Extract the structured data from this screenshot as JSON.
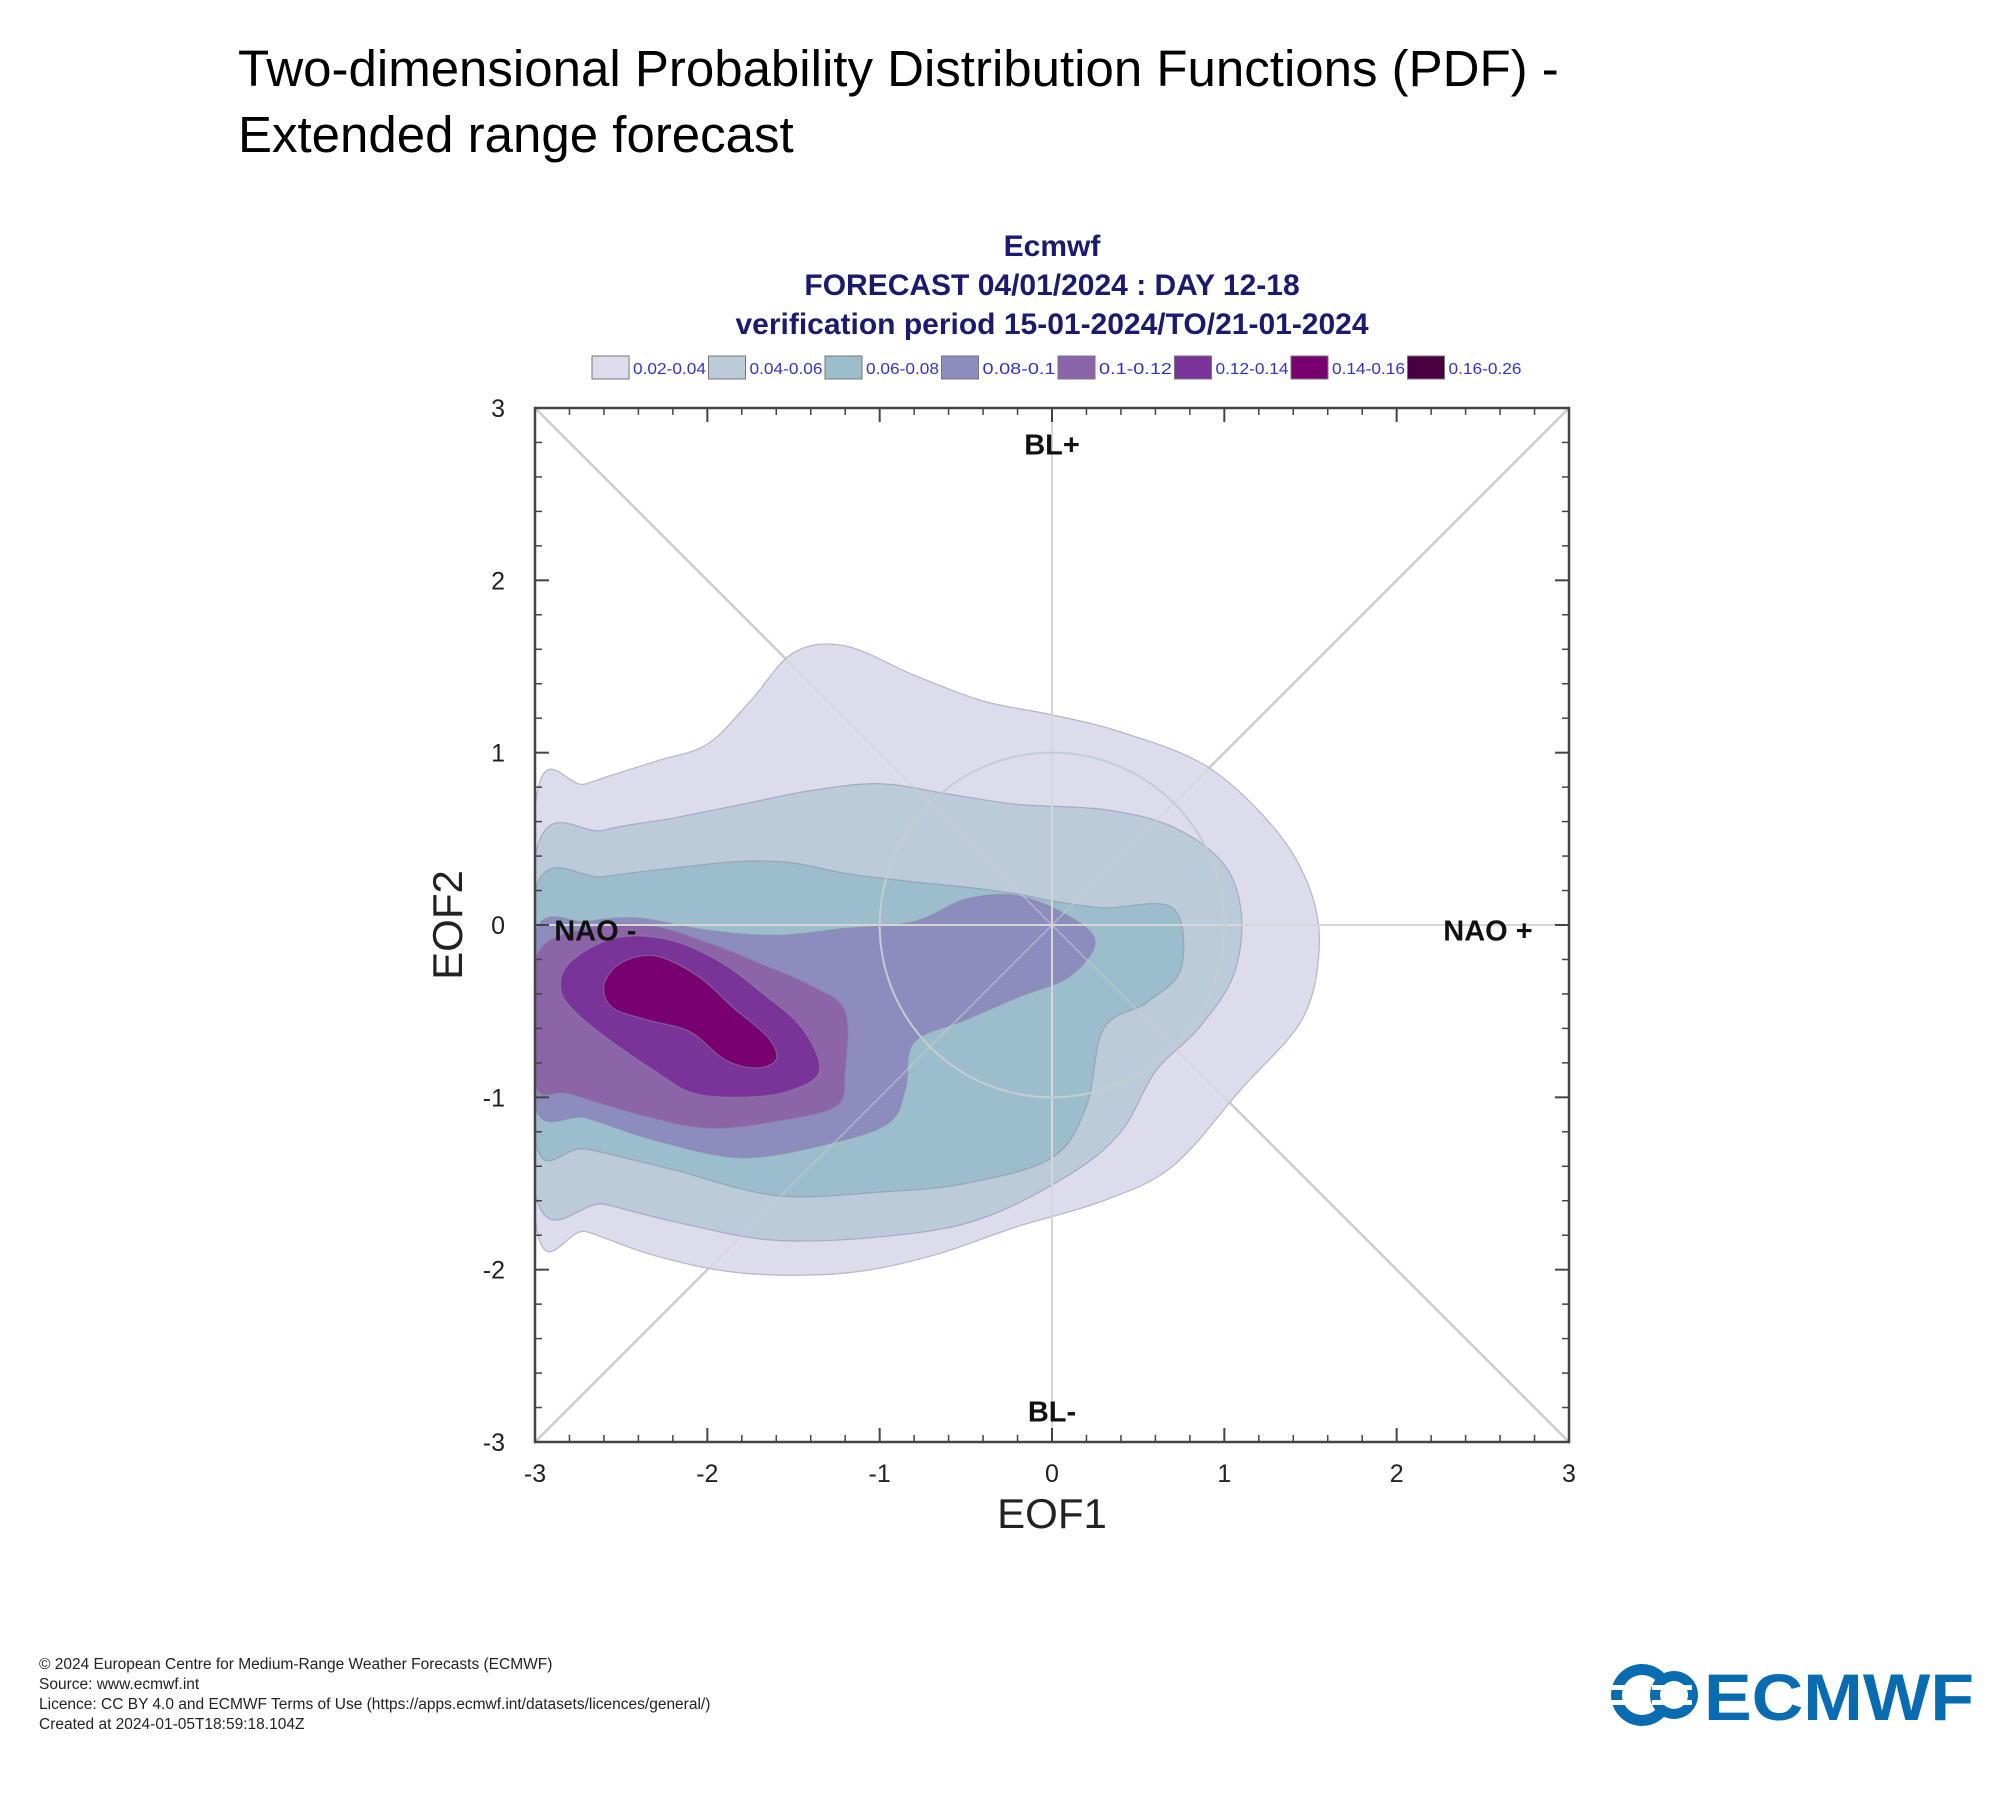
{
  "page": {
    "title_line1": "Two-dimensional Probability Distribution Functions (PDF) -",
    "title_line2": "Extended range forecast"
  },
  "chart_data": {
    "type": "contour",
    "title_lines": [
      "Ecmwf",
      "FORECAST 04/01/2024 : DAY 12-18",
      "verification period 15-01-2024/TO/21-01-2024"
    ],
    "xlabel": "EOF1",
    "ylabel": "EOF2",
    "xlim": [
      -3,
      3
    ],
    "ylim": [
      -3,
      3
    ],
    "xticks": [
      "-3",
      "-2",
      "-1",
      "0",
      "1",
      "2",
      "3"
    ],
    "yticks": [
      "-3",
      "-2",
      "-1",
      "0",
      "1",
      "2",
      "3"
    ],
    "regime_labels": [
      {
        "text": "BL+",
        "x": 0,
        "y": 2.73
      },
      {
        "text": "BL-",
        "x": 0,
        "y": -2.88
      },
      {
        "text": "NAO -",
        "x": -2.65,
        "y": -0.09
      },
      {
        "text": "NAO +",
        "x": 2.53,
        "y": -0.09
      }
    ],
    "legend": [
      {
        "label": "0.02-0.04",
        "color": "#dcdcec"
      },
      {
        "label": "0.04-0.06",
        "color": "#bccbda"
      },
      {
        "label": "0.06-0.08",
        "color": "#9bbdcc"
      },
      {
        "label": "0.08-0.1",
        "color": "#8c8cbe"
      },
      {
        "label": "0.1-0.12",
        "color": "#8c64a8"
      },
      {
        "label": "0.12-0.14",
        "color": "#7a3398"
      },
      {
        "label": "0.14-0.16",
        "color": "#780070"
      },
      {
        "label": "0.16-0.26",
        "color": "#4a0040"
      }
    ],
    "contours": [
      {
        "level": "0.02-0.04",
        "color": "#dcdcec",
        "points": [
          [
            -3,
            0.69
          ],
          [
            -2.7,
            0.82
          ],
          [
            -2.3,
            0.95
          ],
          [
            -2,
            1.05
          ],
          [
            -1.75,
            1.3
          ],
          [
            -1.5,
            1.58
          ],
          [
            -1.2,
            1.62
          ],
          [
            -0.8,
            1.45
          ],
          [
            -0.4,
            1.3
          ],
          [
            0,
            1.22
          ],
          [
            0.4,
            1.12
          ],
          [
            0.9,
            0.92
          ],
          [
            1.3,
            0.55
          ],
          [
            1.5,
            0.2
          ],
          [
            1.55,
            -0.15
          ],
          [
            1.45,
            -0.55
          ],
          [
            1.1,
            -0.95
          ],
          [
            0.7,
            -1.4
          ],
          [
            0.3,
            -1.6
          ],
          [
            -0.2,
            -1.75
          ],
          [
            -0.7,
            -1.92
          ],
          [
            -1.2,
            -2.02
          ],
          [
            -1.8,
            -2.02
          ],
          [
            -2.3,
            -1.92
          ],
          [
            -2.7,
            -1.78
          ],
          [
            -3,
            -1.7
          ]
        ]
      },
      {
        "level": "0.04-0.06",
        "color": "#bccbda",
        "points": [
          [
            -3,
            0.4
          ],
          [
            -2.6,
            0.55
          ],
          [
            -2.2,
            0.62
          ],
          [
            -1.8,
            0.7
          ],
          [
            -1.4,
            0.78
          ],
          [
            -1,
            0.82
          ],
          [
            -0.6,
            0.76
          ],
          [
            -0.2,
            0.7
          ],
          [
            0.3,
            0.67
          ],
          [
            0.7,
            0.57
          ],
          [
            1,
            0.35
          ],
          [
            1.1,
            0.05
          ],
          [
            1.05,
            -0.3
          ],
          [
            0.85,
            -0.6
          ],
          [
            0.6,
            -0.85
          ],
          [
            0.4,
            -1.2
          ],
          [
            0.1,
            -1.45
          ],
          [
            -0.4,
            -1.7
          ],
          [
            -0.9,
            -1.8
          ],
          [
            -1.6,
            -1.83
          ],
          [
            -2.2,
            -1.72
          ],
          [
            -2.6,
            -1.62
          ],
          [
            -3,
            -1.55
          ]
        ]
      },
      {
        "level": "0.06-0.08",
        "color": "#9bbdcc",
        "points": [
          [
            -3,
            0.2
          ],
          [
            -2.6,
            0.28
          ],
          [
            -2.2,
            0.33
          ],
          [
            -1.8,
            0.37
          ],
          [
            -1.5,
            0.36
          ],
          [
            -1.2,
            0.3
          ],
          [
            -0.8,
            0.25
          ],
          [
            -0.5,
            0.22
          ],
          [
            -0.2,
            0.18
          ],
          [
            0,
            0.14
          ],
          [
            0.3,
            0.1
          ],
          [
            0.7,
            0.1
          ],
          [
            0.75,
            -0.25
          ],
          [
            0.55,
            -0.45
          ],
          [
            0.3,
            -0.6
          ],
          [
            0.2,
            -1.05
          ],
          [
            0,
            -1.35
          ],
          [
            -0.5,
            -1.5
          ],
          [
            -1,
            -1.55
          ],
          [
            -1.6,
            -1.57
          ],
          [
            -2.2,
            -1.42
          ],
          [
            -2.7,
            -1.3
          ],
          [
            -3,
            -1.25
          ]
        ]
      },
      {
        "level": "0.08-0.1",
        "color": "#8c8cbe",
        "points": [
          [
            -3,
            -0.05
          ],
          [
            -2.7,
            0.02
          ],
          [
            -2.4,
            0.04
          ],
          [
            -2,
            -0.03
          ],
          [
            -1.6,
            -0.06
          ],
          [
            -1.2,
            -0.02
          ],
          [
            -0.8,
            0.02
          ],
          [
            -0.5,
            0.15
          ],
          [
            -0.2,
            0.17
          ],
          [
            0.1,
            0.05
          ],
          [
            0.25,
            -0.1
          ],
          [
            0.1,
            -0.3
          ],
          [
            -0.2,
            -0.42
          ],
          [
            -0.5,
            -0.55
          ],
          [
            -0.8,
            -0.68
          ],
          [
            -0.85,
            -0.95
          ],
          [
            -0.95,
            -1.15
          ],
          [
            -1.3,
            -1.27
          ],
          [
            -1.8,
            -1.35
          ],
          [
            -2.3,
            -1.25
          ],
          [
            -2.7,
            -1.12
          ],
          [
            -3,
            -1.05
          ]
        ]
      },
      {
        "level": "0.1-0.12",
        "color": "#8c64a8",
        "points": [
          [
            -3,
            -0.2
          ],
          [
            -2.7,
            -0.02
          ],
          [
            -2.35,
            0.0
          ],
          [
            -2,
            -0.1
          ],
          [
            -1.7,
            -0.22
          ],
          [
            -1.4,
            -0.35
          ],
          [
            -1.2,
            -0.5
          ],
          [
            -1.2,
            -0.85
          ],
          [
            -1.25,
            -1.05
          ],
          [
            -1.6,
            -1.14
          ],
          [
            -2,
            -1.18
          ],
          [
            -2.4,
            -1.1
          ],
          [
            -2.8,
            -0.98
          ],
          [
            -3,
            -0.92
          ]
        ]
      },
      {
        "level": "0.12-0.14",
        "color": "#7a3398",
        "points": [
          [
            -2.8,
            -0.22
          ],
          [
            -2.55,
            -0.08
          ],
          [
            -2.25,
            -0.08
          ],
          [
            -1.95,
            -0.2
          ],
          [
            -1.7,
            -0.38
          ],
          [
            -1.45,
            -0.6
          ],
          [
            -1.35,
            -0.85
          ],
          [
            -1.55,
            -0.97
          ],
          [
            -1.85,
            -1.0
          ],
          [
            -2.1,
            -0.97
          ],
          [
            -2.3,
            -0.85
          ],
          [
            -2.55,
            -0.68
          ],
          [
            -2.75,
            -0.52
          ],
          [
            -2.85,
            -0.38
          ]
        ]
      },
      {
        "level": "0.14-0.16",
        "color": "#780070",
        "points": [
          [
            -2.6,
            -0.35
          ],
          [
            -2.5,
            -0.22
          ],
          [
            -2.3,
            -0.18
          ],
          [
            -2.05,
            -0.3
          ],
          [
            -1.85,
            -0.48
          ],
          [
            -1.65,
            -0.65
          ],
          [
            -1.6,
            -0.78
          ],
          [
            -1.72,
            -0.83
          ],
          [
            -1.9,
            -0.78
          ],
          [
            -2.1,
            -0.62
          ],
          [
            -2.35,
            -0.55
          ],
          [
            -2.55,
            -0.48
          ]
        ]
      }
    ],
    "reference_circle": {
      "center": [
        0,
        0
      ],
      "radius": 1
    }
  },
  "footer": {
    "copyright": "© 2024 European Centre for Medium-Range Weather Forecasts (ECMWF)",
    "source": "Source: www.ecmwf.int",
    "licence": "Licence: CC BY 4.0 and ECMWF Terms of Use (https://apps.ecmwf.int/datasets/licences/general/)",
    "created": "Created at 2024-01-05T18:59:18.104Z"
  },
  "logo": {
    "text": "ECMWF",
    "color": "#0a6cb0"
  }
}
